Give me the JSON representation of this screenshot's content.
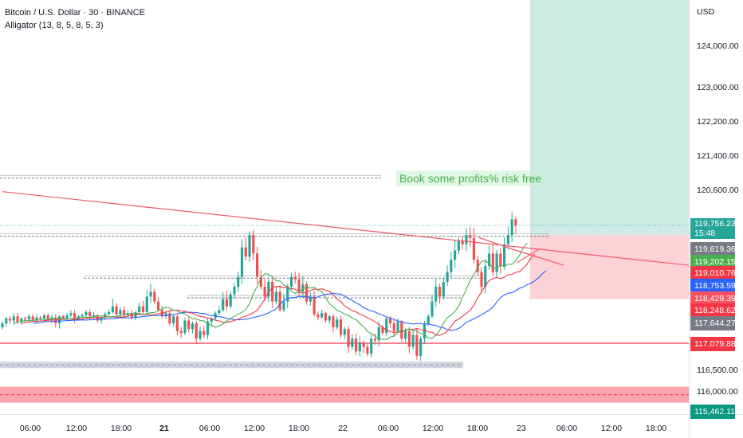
{
  "legend": {
    "symbol_line": "Bitcoin / U.S. Dollar · 30 · BINANCE",
    "indicator_line": "Alligator (13, 8, 5, 8, 5, 3)"
  },
  "annotation": "Book some profits% risk free",
  "currency": "USD",
  "colors": {
    "up": "#26a69a",
    "down": "#ef5350",
    "jaw": "#2962ff",
    "teeth": "#f23645",
    "lips": "#4caf50",
    "trendline": "#f05a6b",
    "profit_zone": "#cdebe3",
    "loss_zone": "#fbd3d6",
    "support_band": "#f8a5ae"
  },
  "price_labels": [
    {
      "price": 119756.23,
      "text": "119,756.23",
      "sub": "15:48",
      "color": "#26a69a"
    },
    {
      "price": 119619.36,
      "text": "119,619.36",
      "color": "#787b86"
    },
    {
      "price": 119202.15,
      "text": "119,202.15",
      "color": "#4caf50"
    },
    {
      "price": 119010.76,
      "text": "119,010.76",
      "color": "#f23645"
    },
    {
      "price": 118753.59,
      "text": "118,753.59",
      "color": "#2962ff"
    },
    {
      "price": 118429.39,
      "text": "118,429.39",
      "color": "#f7525f"
    },
    {
      "price": 118248.62,
      "text": "118,248.62",
      "color": "#f23645"
    },
    {
      "price": 117644.27,
      "text": "117,644.27",
      "color": "#787b86"
    },
    {
      "price": 117079.88,
      "text": "117,079.88",
      "color": "#f23645"
    },
    {
      "price": 115462.11,
      "text": "115,462.11",
      "color": "#089981"
    }
  ],
  "chart_data": {
    "type": "candlestick",
    "title": "Bitcoin / U.S. Dollar · 30 · BINANCE",
    "y_axis": {
      "ticks": [
        124000,
        123000,
        122200,
        121400,
        120600,
        116500,
        116000
      ],
      "tick_labels": [
        "124,000.00",
        "123,000.00",
        "122,200.00",
        "121,400.00",
        "120,600.00",
        "116,500.00",
        "116,000.00"
      ],
      "scale": "log"
    },
    "x_axis": {
      "ticks": [
        "06:00",
        "12:00",
        "18:00",
        "21",
        "06:00",
        "12:00",
        "18:00",
        "22",
        "06:00",
        "12:00",
        "18:00",
        "23",
        "06:00",
        "12:00",
        "18:00"
      ],
      "bold": [
        false,
        false,
        false,
        true,
        false,
        false,
        false,
        false,
        false,
        false,
        false,
        false,
        false,
        false,
        false
      ]
    },
    "series_close": [
      117600,
      117800,
      117700,
      117900,
      117650,
      117800,
      117750,
      117900,
      117700,
      117850,
      117800,
      117950,
      117700,
      117850,
      117600,
      117900,
      117800,
      117950,
      118050,
      117750,
      117900,
      117950,
      118100,
      117900,
      117950,
      117700,
      117850,
      118000,
      118100,
      118300,
      118000,
      118200,
      117950,
      118050,
      117850,
      118100,
      118300,
      118100,
      118500,
      118600,
      118400,
      118200,
      117900,
      118050,
      117600,
      117900,
      117400,
      117350,
      117700,
      117450,
      117600,
      117200,
      117400,
      117300,
      117650,
      117800,
      118050,
      118200,
      118450,
      118300,
      118550,
      118700,
      118900,
      119400,
      119250,
      119600,
      119300,
      118900,
      118700,
      118500,
      118800,
      118400,
      118600,
      118200,
      118400,
      118700,
      118900,
      118850,
      118600,
      118750,
      118400,
      118500,
      118000,
      117850,
      118050,
      117700,
      117900,
      117500,
      117750,
      117300,
      117450,
      117000,
      117200,
      116900,
      117100,
      117000,
      116850,
      117200,
      117150,
      117500,
      117350,
      117800,
      117600,
      117400,
      117650,
      117200,
      117400,
      117000,
      117300,
      116800,
      117200,
      117600,
      117900,
      118400,
      118700,
      118500,
      118800,
      119000,
      119200,
      119350,
      119500,
      119450,
      119600,
      119550,
      119200,
      119000,
      118700,
      119100,
      119300,
      119000,
      119300,
      119100,
      119450,
      119600,
      119900,
      119756
    ],
    "alligator": {
      "jaw_period": 13,
      "teeth_period": 8,
      "lips_period": 5,
      "jaw_offset": 8,
      "teeth_offset": 5,
      "lips_offset": 3
    },
    "horizontal_levels": [
      {
        "price": 120900,
        "style": "dashed-gray"
      },
      {
        "price": 119600,
        "style": "dashed-gray"
      },
      {
        "price": 118900,
        "style": "dashed-gray"
      },
      {
        "price": 118500,
        "style": "dashed-gray"
      },
      {
        "price": 117079.88,
        "style": "solid-red"
      },
      {
        "price": 116600,
        "style": "dashed-gray-band"
      },
      {
        "price": 115900,
        "style": "dashed-red-band"
      }
    ],
    "trendline": {
      "from": [
        0,
        120550
      ],
      "to": [
        155,
        119202
      ]
    },
    "position": {
      "entry": 119600,
      "target": 124600,
      "stop": 118450
    }
  }
}
